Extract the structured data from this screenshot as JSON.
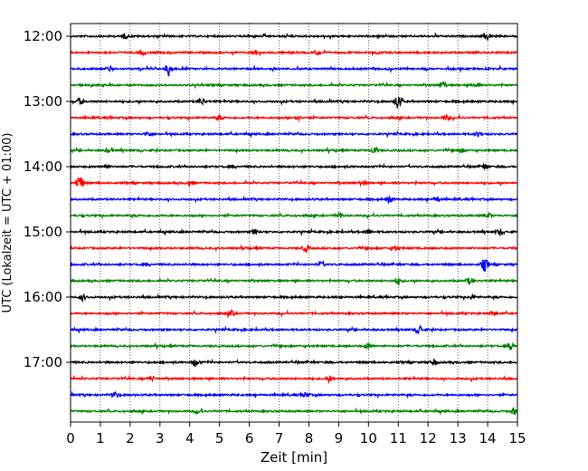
{
  "chart_data": {
    "type": "line",
    "title": "",
    "xlabel": "Zeit  [min]",
    "ylabel": "UTC (Lokalzeit = UTC + 01:00)",
    "xlim": [
      0,
      15
    ],
    "x_ticks": [
      "0",
      "1",
      "2",
      "3",
      "4",
      "5",
      "6",
      "7",
      "8",
      "9",
      "10",
      "11",
      "12",
      "13",
      "14",
      "15"
    ],
    "y_tick_labels": [
      "12:00",
      "13:00",
      "14:00",
      "15:00",
      "16:00",
      "17:00"
    ],
    "grid": "vertical dotted",
    "trace_interval_min": 15,
    "colors": [
      "#000000",
      "#ff0000",
      "#0000ff",
      "#008000"
    ],
    "series": [
      {
        "start": "12:00",
        "color": "#000000",
        "events": [
          [
            1.8,
            0.3
          ],
          [
            14.0,
            0.4
          ]
        ]
      },
      {
        "start": "12:15",
        "color": "#ff0000",
        "events": [
          [
            2.4,
            0.3
          ],
          [
            6.2,
            0.3
          ],
          [
            8.3,
            0.3
          ]
        ]
      },
      {
        "start": "12:30",
        "color": "#0000ff",
        "events": [
          [
            1.3,
            0.3
          ],
          [
            3.3,
            0.9
          ]
        ]
      },
      {
        "start": "12:45",
        "color": "#008000",
        "events": [
          [
            12.5,
            0.5
          ],
          [
            13.6,
            0.3
          ]
        ]
      },
      {
        "start": "13:00",
        "color": "#000000",
        "events": [
          [
            0.3,
            0.4
          ],
          [
            4.4,
            0.4
          ],
          [
            11.0,
            1.0
          ]
        ]
      },
      {
        "start": "13:15",
        "color": "#ff0000",
        "events": [
          [
            5.0,
            0.3
          ],
          [
            7.6,
            0.3
          ],
          [
            12.6,
            0.3
          ]
        ]
      },
      {
        "start": "13:30",
        "color": "#0000ff",
        "events": [
          [
            2.6,
            0.3
          ],
          [
            13.7,
            0.3
          ]
        ]
      },
      {
        "start": "13:45",
        "color": "#008000",
        "events": [
          [
            1.3,
            0.3
          ],
          [
            10.2,
            0.4
          ],
          [
            13.1,
            0.3
          ]
        ]
      },
      {
        "start": "14:00",
        "color": "#000000",
        "events": [
          [
            1.2,
            0.3
          ],
          [
            13.9,
            0.3
          ]
        ]
      },
      {
        "start": "14:15",
        "color": "#ff0000",
        "events": [
          [
            0.3,
            1.0
          ],
          [
            4.0,
            0.3
          ],
          [
            9.8,
            0.3
          ]
        ]
      },
      {
        "start": "14:30",
        "color": "#0000ff",
        "events": [
          [
            10.7,
            0.4
          ],
          [
            12.3,
            0.3
          ]
        ]
      },
      {
        "start": "14:45",
        "color": "#008000",
        "events": [
          [
            9.0,
            0.3
          ],
          [
            14.0,
            0.3
          ]
        ]
      },
      {
        "start": "15:00",
        "color": "#000000",
        "events": [
          [
            6.2,
            0.3
          ],
          [
            10.0,
            0.3
          ],
          [
            14.4,
            0.3
          ]
        ]
      },
      {
        "start": "15:15",
        "color": "#ff0000",
        "events": [
          [
            7.9,
            0.4
          ],
          [
            10.9,
            0.3
          ]
        ]
      },
      {
        "start": "15:30",
        "color": "#0000ff",
        "events": [
          [
            8.4,
            0.3
          ],
          [
            13.9,
            0.8
          ]
        ]
      },
      {
        "start": "15:45",
        "color": "#008000",
        "events": [
          [
            11.0,
            0.4
          ],
          [
            13.4,
            0.4
          ]
        ]
      },
      {
        "start": "16:00",
        "color": "#000000",
        "events": [
          [
            0.4,
            0.3
          ],
          [
            13.5,
            0.3
          ]
        ]
      },
      {
        "start": "16:15",
        "color": "#ff0000",
        "events": [
          [
            5.4,
            0.3
          ],
          [
            14.2,
            0.3
          ]
        ]
      },
      {
        "start": "16:30",
        "color": "#0000ff",
        "events": [
          [
            11.7,
            0.6
          ]
        ]
      },
      {
        "start": "16:45",
        "color": "#008000",
        "events": [
          [
            10.0,
            0.4
          ],
          [
            14.8,
            0.4
          ]
        ]
      },
      {
        "start": "17:00",
        "color": "#000000",
        "events": [
          [
            4.2,
            0.5
          ],
          [
            12.2,
            0.3
          ]
        ]
      },
      {
        "start": "17:15",
        "color": "#ff0000",
        "events": [
          [
            2.7,
            0.3
          ],
          [
            8.7,
            0.3
          ]
        ]
      },
      {
        "start": "17:30",
        "color": "#0000ff",
        "events": [
          [
            1.5,
            0.3
          ],
          [
            7.9,
            0.3
          ]
        ]
      },
      {
        "start": "17:45",
        "color": "#008000",
        "events": [
          [
            4.3,
            0.3
          ],
          [
            14.9,
            0.4
          ]
        ]
      }
    ]
  }
}
